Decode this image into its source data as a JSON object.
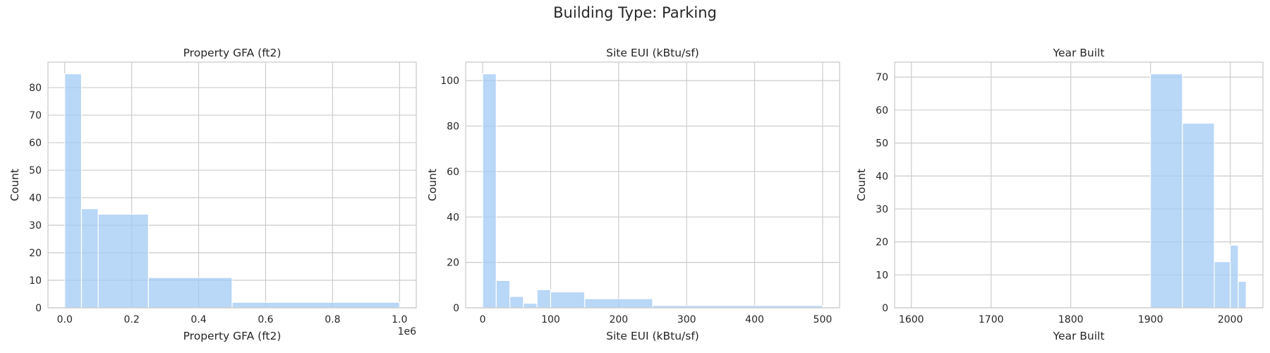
{
  "figure": {
    "suptitle": "Building Type: Parking"
  },
  "colors": {
    "bar": "#a1c9f4",
    "grid": "#cccccc",
    "text": "#262626"
  },
  "chart_data": [
    {
      "type": "bar",
      "title": "Property GFA (ft2)",
      "xlabel": "Property GFA (ft2)",
      "ylabel": "Count",
      "offset_label": "1e6",
      "bins": [
        [
          0,
          50000,
          85
        ],
        [
          50000,
          100000,
          36
        ],
        [
          100000,
          250000,
          34
        ],
        [
          250000,
          500000,
          11
        ],
        [
          500000,
          1000000,
          2
        ]
      ],
      "xlim": [
        -50000,
        1050000
      ],
      "ylim": [
        0,
        89.25
      ],
      "xticks": [
        {
          "value": 0,
          "label": "0.0"
        },
        {
          "value": 200000,
          "label": "0.2"
        },
        {
          "value": 400000,
          "label": "0.4"
        },
        {
          "value": 600000,
          "label": "0.6"
        },
        {
          "value": 800000,
          "label": "0.8"
        },
        {
          "value": 1000000,
          "label": "1.0"
        }
      ],
      "yticks": [
        {
          "value": 0,
          "label": "0"
        },
        {
          "value": 10,
          "label": "10"
        },
        {
          "value": 20,
          "label": "20"
        },
        {
          "value": 30,
          "label": "30"
        },
        {
          "value": 40,
          "label": "40"
        },
        {
          "value": 50,
          "label": "50"
        },
        {
          "value": 60,
          "label": "60"
        },
        {
          "value": 70,
          "label": "70"
        },
        {
          "value": 80,
          "label": "80"
        }
      ],
      "grid": true
    },
    {
      "type": "bar",
      "title": "Site EUI (kBtu/sf)",
      "xlabel": "Site EUI (kBtu/sf)",
      "ylabel": "Count",
      "offset_label": "",
      "bins": [
        [
          0,
          20,
          103
        ],
        [
          20,
          40,
          12
        ],
        [
          40,
          60,
          5
        ],
        [
          60,
          80,
          2
        ],
        [
          80,
          100,
          8
        ],
        [
          100,
          150,
          7
        ],
        [
          150,
          250,
          4
        ],
        [
          250,
          500,
          1
        ]
      ],
      "xlim": [
        -25,
        525
      ],
      "ylim": [
        0,
        108.15
      ],
      "xticks": [
        {
          "value": 0,
          "label": "0"
        },
        {
          "value": 100,
          "label": "100"
        },
        {
          "value": 200,
          "label": "200"
        },
        {
          "value": 300,
          "label": "300"
        },
        {
          "value": 400,
          "label": "400"
        },
        {
          "value": 500,
          "label": "500"
        }
      ],
      "yticks": [
        {
          "value": 0,
          "label": "0"
        },
        {
          "value": 20,
          "label": "20"
        },
        {
          "value": 40,
          "label": "40"
        },
        {
          "value": 60,
          "label": "60"
        },
        {
          "value": 80,
          "label": "80"
        },
        {
          "value": 100,
          "label": "100"
        }
      ],
      "grid": true
    },
    {
      "type": "bar",
      "title": "Year Built",
      "xlabel": "Year Built",
      "ylabel": "Count",
      "offset_label": "",
      "bins": [
        [
          1900,
          1940,
          71
        ],
        [
          1940,
          1980,
          56
        ],
        [
          1980,
          2000,
          14
        ],
        [
          2000,
          2010,
          19
        ],
        [
          2010,
          2020,
          8
        ]
      ],
      "xlim": [
        1579,
        2041
      ],
      "ylim": [
        0,
        74.55
      ],
      "xticks": [
        {
          "value": 1600,
          "label": "1600"
        },
        {
          "value": 1700,
          "label": "1700"
        },
        {
          "value": 1800,
          "label": "1800"
        },
        {
          "value": 1900,
          "label": "1900"
        },
        {
          "value": 2000,
          "label": "2000"
        }
      ],
      "yticks": [
        {
          "value": 0,
          "label": "0"
        },
        {
          "value": 10,
          "label": "10"
        },
        {
          "value": 20,
          "label": "20"
        },
        {
          "value": 30,
          "label": "30"
        },
        {
          "value": 40,
          "label": "40"
        },
        {
          "value": 50,
          "label": "50"
        },
        {
          "value": 60,
          "label": "60"
        },
        {
          "value": 70,
          "label": "70"
        }
      ],
      "grid": true
    }
  ]
}
